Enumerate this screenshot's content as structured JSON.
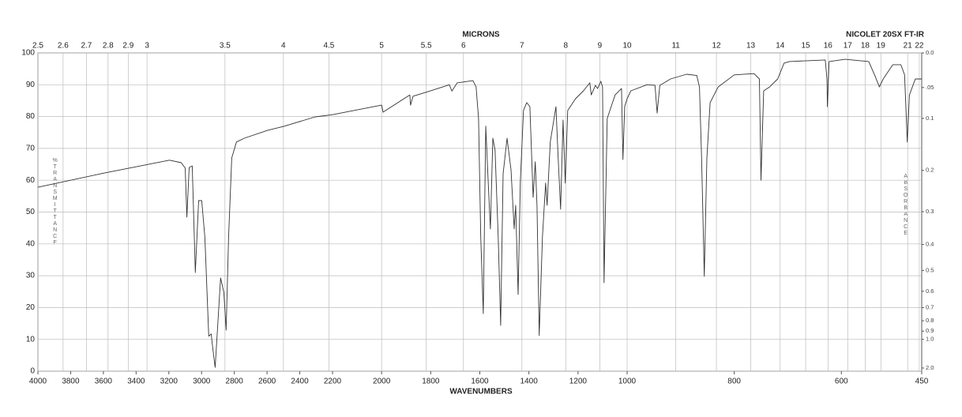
{
  "chart_data": {
    "type": "line",
    "title": "NICOLET 20SX FT-IR",
    "x2label": "MICRONS",
    "xlabel": "WAVENUMBERS",
    "ylabel": "%TRANSMITTANCE",
    "y2label": "ABSORBANCE",
    "color": "#333333",
    "grid": true,
    "xlim": [
      4000,
      450
    ],
    "xticks": [
      4000,
      3800,
      3600,
      3400,
      3200,
      3000,
      2800,
      2600,
      2400,
      2200,
      2000,
      1800,
      1600,
      1400,
      1200,
      1000,
      800,
      600,
      450
    ],
    "ylim": [
      0,
      100
    ],
    "yticks": [
      0,
      10,
      20,
      30,
      40,
      50,
      60,
      70,
      80,
      90,
      100
    ],
    "micron_ticks": [
      2.5,
      2.6,
      2.7,
      2.8,
      2.9,
      3,
      3.5,
      4,
      4.5,
      5,
      5.5,
      6,
      7,
      8,
      9,
      10,
      11,
      12,
      13,
      14,
      15,
      16,
      17,
      18,
      19,
      21,
      22
    ],
    "absorbance_ticks": [
      {
        "value": 0,
        "label": "0.0"
      },
      {
        "value": 0.05,
        "label": ".05"
      },
      0.1,
      0.2,
      0.3,
      0.4,
      0.5,
      0.6,
      0.7,
      0.8,
      0.9,
      {
        "value": 1,
        "label": "1.0"
      },
      {
        "value": 2,
        "label": "2.0"
      }
    ],
    "x": [
      4000,
      3600,
      3196,
      3124,
      3100,
      3090,
      3076,
      3057,
      3038,
      3018,
      2999,
      2980,
      2956,
      2941,
      2932,
      2917,
      2898,
      2884,
      2864,
      2850,
      2835,
      2816,
      2787,
      2739,
      2595,
      2499,
      2306,
      2200,
      2000,
      1994,
      1885,
      1882,
      1872,
      1805,
      1724,
      1714,
      1692,
      1628,
      1615,
      1605,
      1596,
      1586,
      1576,
      1563,
      1557,
      1547,
      1538,
      1525,
      1515,
      1505,
      1489,
      1473,
      1460,
      1454,
      1444,
      1435,
      1422,
      1409,
      1396,
      1383,
      1374,
      1367,
      1358,
      1345,
      1332,
      1326,
      1313,
      1290,
      1281,
      1271,
      1261,
      1252,
      1242,
      1210,
      1178,
      1152,
      1146,
      1129,
      1120,
      1107,
      1100,
      1094,
      1081,
      1049,
      1023,
      1017,
      1010,
      1000,
      993,
      963,
      948,
      944,
      939,
      919,
      889,
      870,
      865,
      861,
      856,
      851,
      845,
      830,
      800,
      763,
      753,
      750,
      745,
      734,
      719,
      707,
      697,
      630,
      627,
      626,
      623,
      593,
      549,
      538,
      529,
      522,
      504,
      489,
      482,
      477,
      473,
      462,
      450
    ],
    "values": [
      57.8,
      62.2,
      66.3,
      65.5,
      63.8,
      48.4,
      64,
      64.5,
      31,
      53.6,
      53.6,
      42,
      11,
      11.7,
      7.4,
      1.2,
      17.4,
      29.3,
      24.8,
      12.9,
      42,
      67,
      72,
      73.2,
      75.7,
      76.9,
      79.9,
      80.6,
      83.6,
      81.4,
      86.8,
      83.6,
      86.4,
      88,
      90,
      88,
      90.6,
      91.3,
      89.3,
      79.4,
      42,
      18.1,
      77,
      54.6,
      44.7,
      73.2,
      69.5,
      42,
      14.4,
      62,
      73.2,
      63.3,
      44.7,
      52.1,
      24.1,
      59.6,
      81.9,
      84.4,
      83.1,
      54.6,
      65.8,
      52.1,
      11.2,
      42.2,
      59.1,
      52.1,
      72,
      83.1,
      67,
      50.9,
      78.9,
      59.1,
      81.9,
      85.6,
      88.1,
      90.6,
      86.8,
      89.8,
      88.8,
      91.1,
      89.3,
      27.8,
      79.4,
      86.8,
      88.8,
      66.5,
      83.1,
      85.6,
      88.1,
      90,
      89.8,
      81.1,
      89.8,
      91.8,
      93.3,
      92.9,
      89.3,
      67,
      29.8,
      67,
      84.4,
      89.3,
      93.1,
      93.5,
      91.8,
      60,
      88.1,
      89.3,
      91.8,
      96.8,
      97.3,
      97.8,
      91.8,
      83.1,
      97.3,
      98,
      97.3,
      93.1,
      89.3,
      91.8,
      96.3,
      96.3,
      93.1,
      72,
      86.8,
      91.8,
      91.8
    ]
  }
}
